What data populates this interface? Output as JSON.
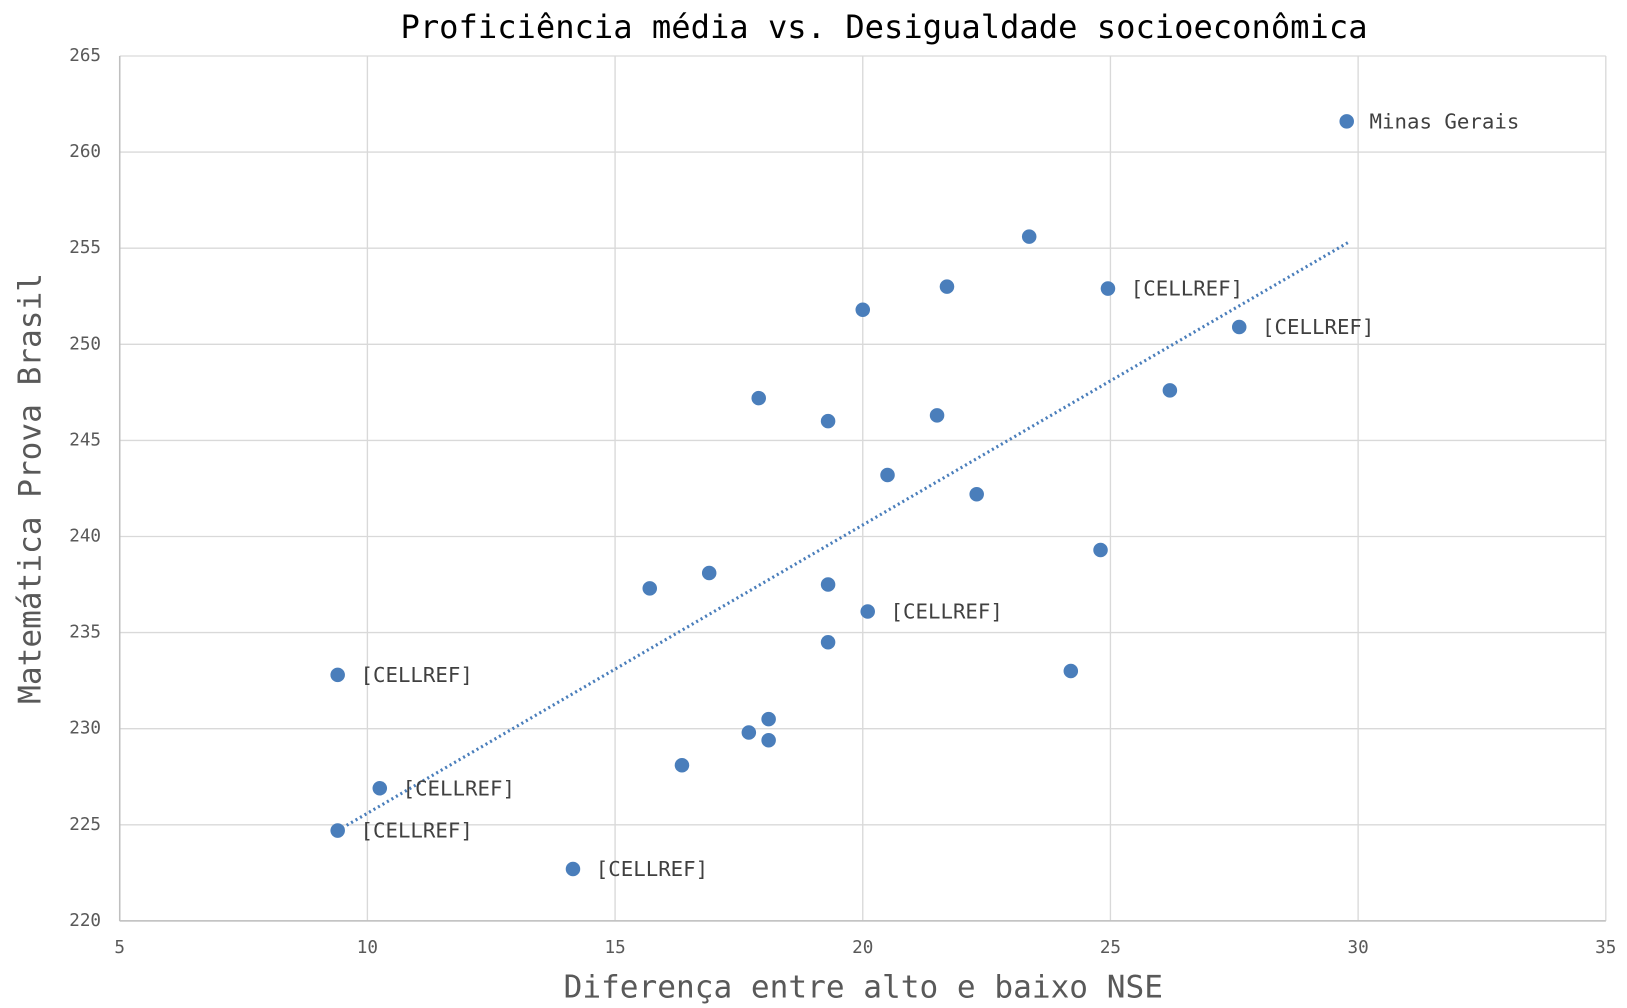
{
  "chart_data": {
    "type": "scatter",
    "title": "Proficiência média vs. Desigualdade socioeconômica",
    "x_label": "Diferença entre alto e baixo NSE",
    "y_label": "Matemática Prova Brasil",
    "color": "#4a7ebb",
    "grid": true,
    "xlim": [
      5,
      35
    ],
    "xticks": [
      5,
      10,
      15,
      20,
      25,
      30,
      35
    ],
    "ylim": [
      220,
      265
    ],
    "yticks": [
      220,
      225,
      230,
      235,
      240,
      245,
      250,
      255,
      260,
      265
    ],
    "x": [
      29.77,
      23.36,
      21.7,
      24.95,
      20.0,
      27.6,
      26.2,
      17.9,
      19.3,
      21.5,
      20.5,
      22.3,
      24.8,
      16.9,
      15.7,
      19.3,
      20.1,
      19.3,
      9.4,
      24.2,
      18.1,
      17.7,
      18.1,
      16.35,
      10.25,
      9.4,
      14.15
    ],
    "values": [
      261.6,
      255.6,
      253.0,
      252.9,
      251.8,
      250.9,
      247.6,
      247.2,
      246.0,
      246.3,
      243.2,
      242.2,
      239.3,
      238.1,
      237.3,
      237.5,
      236.1,
      234.5,
      232.8,
      233.0,
      230.5,
      229.8,
      229.4,
      228.1,
      226.9,
      224.7,
      222.7
    ],
    "labels": [
      "Minas Gerais",
      null,
      null,
      "[CELLREF]",
      null,
      "[CELLREF]",
      null,
      null,
      null,
      null,
      null,
      null,
      null,
      null,
      null,
      null,
      "[CELLREF]",
      null,
      "[CELLREF]",
      null,
      null,
      null,
      null,
      null,
      "[CELLREF]",
      "[CELLREF]",
      "[CELLREF]"
    ],
    "trendline": {
      "x": [
        9.4,
        29.8
      ],
      "values": [
        224.7,
        255.3
      ]
    }
  }
}
